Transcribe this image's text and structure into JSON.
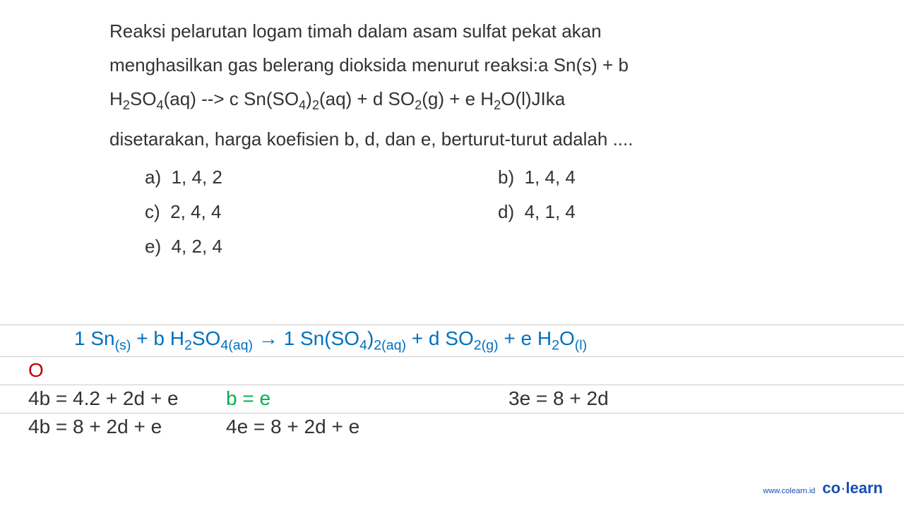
{
  "question": {
    "text_parts": {
      "line1": "Reaksi pelarutan logam timah dalam asam sulfat pekat akan",
      "line2_pre": "menghasilkan gas belerang dioksida menurut reaksi:a Sn(s) + b",
      "line3_pre": "H",
      "line3_sub1": "2",
      "line3_mid1": "SO",
      "line3_sub2": "4",
      "line3_mid2": "(aq) --> c Sn(SO",
      "line3_sub3": "4",
      "line3_mid3": ")",
      "line3_sub4": "2",
      "line3_mid4": "(aq) + d SO",
      "line3_sub5": "2",
      "line3_mid5": "(g) + e H",
      "line3_sub6": "2",
      "line3_mid6": "O(l)JIka",
      "line4": "disetarakan, harga koefisien b, d, dan e, berturut-turut adalah ...."
    },
    "colors": {
      "text": "#333333",
      "background": "#ffffff"
    },
    "font_size": 26,
    "line_height": 48
  },
  "options": {
    "a": {
      "label": "a)",
      "value": "1, 4, 2"
    },
    "b": {
      "label": "b)",
      "value": "1, 4, 4"
    },
    "c": {
      "label": "c)",
      "value": "2, 4, 4"
    },
    "d": {
      "label": "d)",
      "value": "4, 1, 4"
    },
    "e": {
      "label": "e)",
      "value": "4, 2, 4"
    },
    "font_size": 26,
    "text_color": "#333333"
  },
  "solution": {
    "equation": {
      "p1": "1 Sn",
      "sub1": "(s)",
      "p2": " + b H",
      "sub2": "2",
      "p3": "SO",
      "sub3": "4(aq)",
      "p4_arrow": " → ",
      "p5": "1 Sn(SO",
      "sub4": "4",
      "p6": ")",
      "sub5": "2(aq)",
      "p7": " + d SO",
      "sub6": "2(g)",
      "p8": " + e H",
      "sub7": "2",
      "p9": "O",
      "sub8": "(l)",
      "color": "#0070c0"
    },
    "oxygen_label": {
      "text": "O",
      "color": "#c00000"
    },
    "calc_row1": {
      "col1": "4b = 4.2 + 2d + e",
      "col2": "b = e",
      "col2_color": "#00b050",
      "col3": "3e = 8 + 2d"
    },
    "calc_row2": {
      "col1": "4b = 8 + 2d + e",
      "col2": "4e = 8 + 2d + e"
    },
    "line_color": "#cccccc",
    "font_size": 28
  },
  "footer": {
    "url": "www.colearn.id",
    "logo_co": "co",
    "logo_dot": "·",
    "logo_learn": "learn",
    "color": "#1a4db3",
    "url_fontsize": 11,
    "logo_fontsize": 22
  }
}
